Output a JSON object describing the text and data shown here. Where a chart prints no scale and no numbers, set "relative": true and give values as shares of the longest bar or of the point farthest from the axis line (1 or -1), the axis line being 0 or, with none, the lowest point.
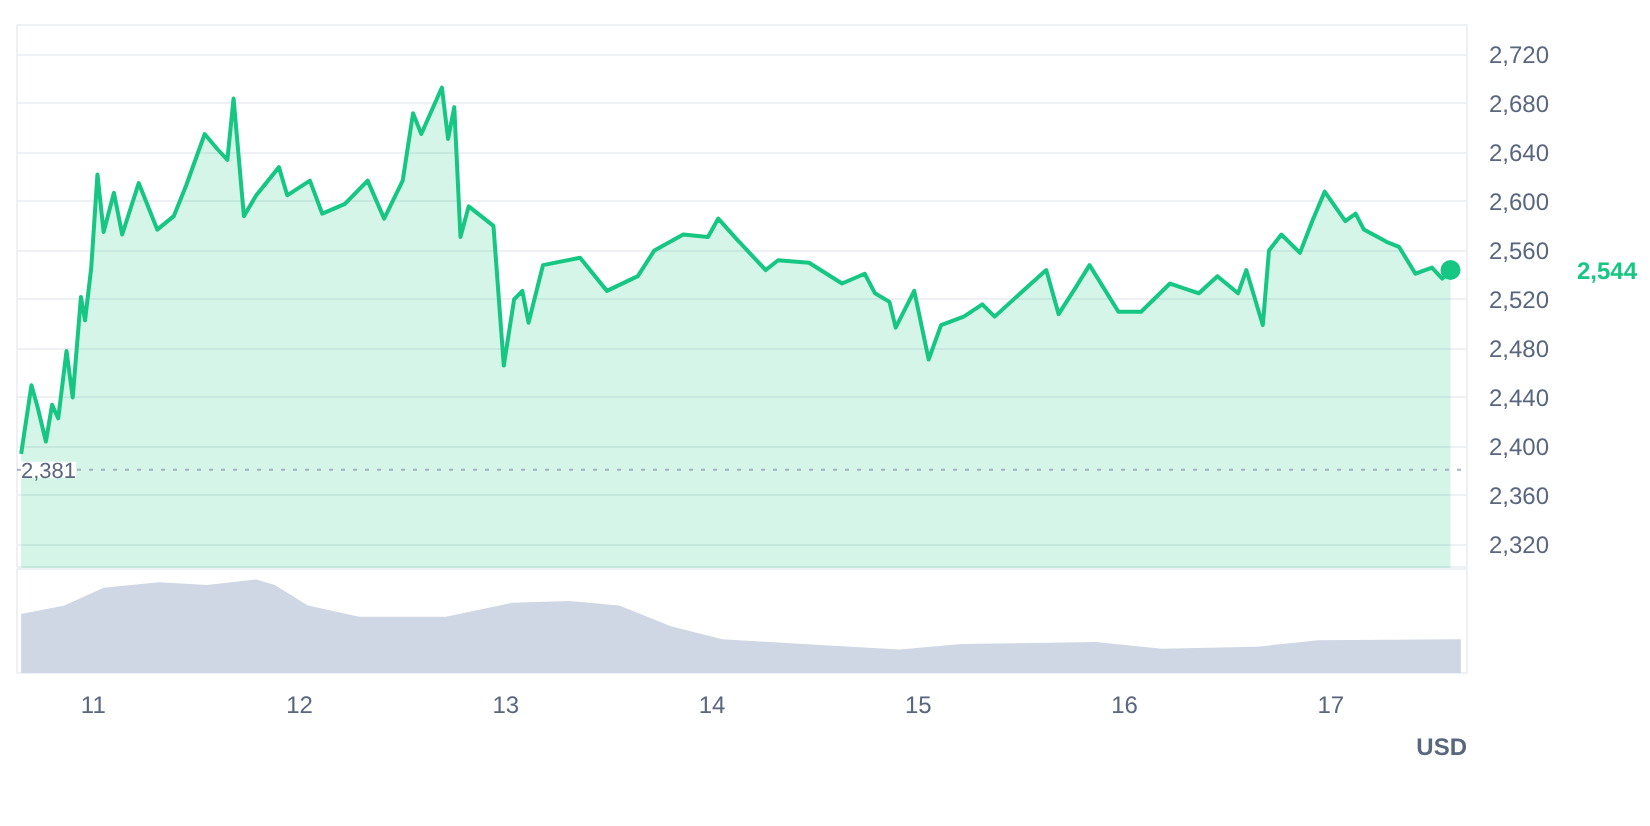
{
  "chart_data": [
    {
      "type": "area",
      "grid": "y",
      "tick_labels": "y",
      "marker": "none",
      "x": [
        10.65,
        10.7,
        10.73,
        10.77,
        10.8,
        10.83,
        10.87,
        10.9,
        10.94,
        10.96,
        10.99,
        11.02,
        11.05,
        11.1,
        11.14,
        11.22,
        11.31,
        11.39,
        11.45,
        11.54,
        11.6,
        11.65,
        11.68,
        11.73,
        11.79,
        11.9,
        11.94,
        12.05,
        12.11,
        12.22,
        12.33,
        12.41,
        12.5,
        12.55,
        12.59,
        12.69,
        12.72,
        12.75,
        12.78,
        12.82,
        12.94,
        12.99,
        13.04,
        13.08,
        13.11,
        13.18,
        13.36,
        13.49,
        13.64,
        13.72,
        13.86,
        13.98,
        14.03,
        14.12,
        14.26,
        14.32,
        14.47,
        14.63,
        14.74,
        14.79,
        14.86,
        14.89,
        14.98,
        15.05,
        15.11,
        15.22,
        15.31,
        15.37,
        15.52,
        15.62,
        15.68,
        15.76,
        15.83,
        15.97,
        16.08,
        16.22,
        16.36,
        16.45,
        16.55,
        16.59,
        16.67,
        16.7,
        16.76,
        16.85,
        16.91,
        16.97,
        17.07,
        17.12,
        17.16,
        17.27,
        17.33,
        17.41,
        17.49,
        17.54,
        17.58
      ],
      "series": [
        {
          "color": "#16c784",
          "values": [
            2394,
            2450,
            2432,
            2404,
            2434,
            2423,
            2478,
            2440,
            2522,
            2503,
            2546,
            2622,
            2575,
            2607,
            2573,
            2615,
            2577,
            2588,
            2613,
            2655,
            2643,
            2634,
            2684,
            2588,
            2605,
            2628,
            2605,
            2617,
            2590,
            2598,
            2617,
            2586,
            2617,
            2672,
            2655,
            2693,
            2651,
            2677,
            2571,
            2596,
            2580,
            2466,
            2520,
            2527,
            2501,
            2548,
            2554,
            2527,
            2539,
            2560,
            2573,
            2571,
            2586,
            2569,
            2544,
            2552,
            2550,
            2533,
            2541,
            2525,
            2518,
            2497,
            2527,
            2471,
            2499,
            2506,
            2516,
            2506,
            2529,
            2544,
            2508,
            2529,
            2548,
            2510,
            2510,
            2533,
            2525,
            2539,
            2525,
            2544,
            2499,
            2560,
            2573,
            2558,
            2584,
            2608,
            2584,
            2590,
            2577,
            2567,
            2563,
            2541,
            2546,
            2537,
            2544
          ]
        }
      ],
      "xlim": [
        10.63,
        17.66
      ],
      "xticks": [
        11,
        12,
        13,
        14,
        15,
        16,
        17
      ],
      "ylim": [
        2300,
        2744
      ],
      "yticks": [
        {
          "value": 2320,
          "label": "2,320"
        },
        {
          "value": 2360,
          "label": "2,360"
        },
        {
          "value": 2400,
          "label": "2,400"
        },
        {
          "value": 2440,
          "label": "2,440"
        },
        {
          "value": 2480,
          "label": "2,480"
        },
        {
          "value": 2520,
          "label": "2,520"
        },
        {
          "value": 2560,
          "label": "2,560"
        },
        {
          "value": 2600,
          "label": "2,600"
        },
        {
          "value": 2640,
          "label": "2,640"
        },
        {
          "value": 2680,
          "label": "2,680"
        },
        {
          "value": 2720,
          "label": "2,720"
        }
      ],
      "ref_lines": [
        {
          "axis": "y",
          "value": 2381,
          "label": "2,381",
          "color": "#a6b0c3",
          "line_style": "dotted"
        }
      ],
      "annotations": [
        "2,544"
      ]
    },
    {
      "type": "area",
      "relative": true,
      "grid": false,
      "tick_labels": "x",
      "annotations": [
        "USD"
      ],
      "x": [
        10.65,
        10.86,
        11.05,
        11.32,
        11.55,
        11.79,
        11.88,
        12.04,
        12.29,
        12.71,
        13.03,
        13.31,
        13.55,
        13.8,
        14.05,
        14.44,
        14.91,
        15.21,
        15.86,
        16.18,
        16.64,
        16.94,
        17.63
      ],
      "series": [
        {
          "color": "#cfd6e4",
          "values": [
            0.63,
            0.72,
            0.91,
            0.97,
            0.94,
            1.0,
            0.94,
            0.72,
            0.6,
            0.6,
            0.75,
            0.77,
            0.72,
            0.5,
            0.36,
            0.31,
            0.25,
            0.31,
            0.33,
            0.26,
            0.28,
            0.35,
            0.36
          ]
        }
      ],
      "xlim": [
        10.63,
        17.66
      ],
      "xticks": [
        11,
        12,
        13,
        14,
        15,
        16,
        17
      ]
    }
  ]
}
